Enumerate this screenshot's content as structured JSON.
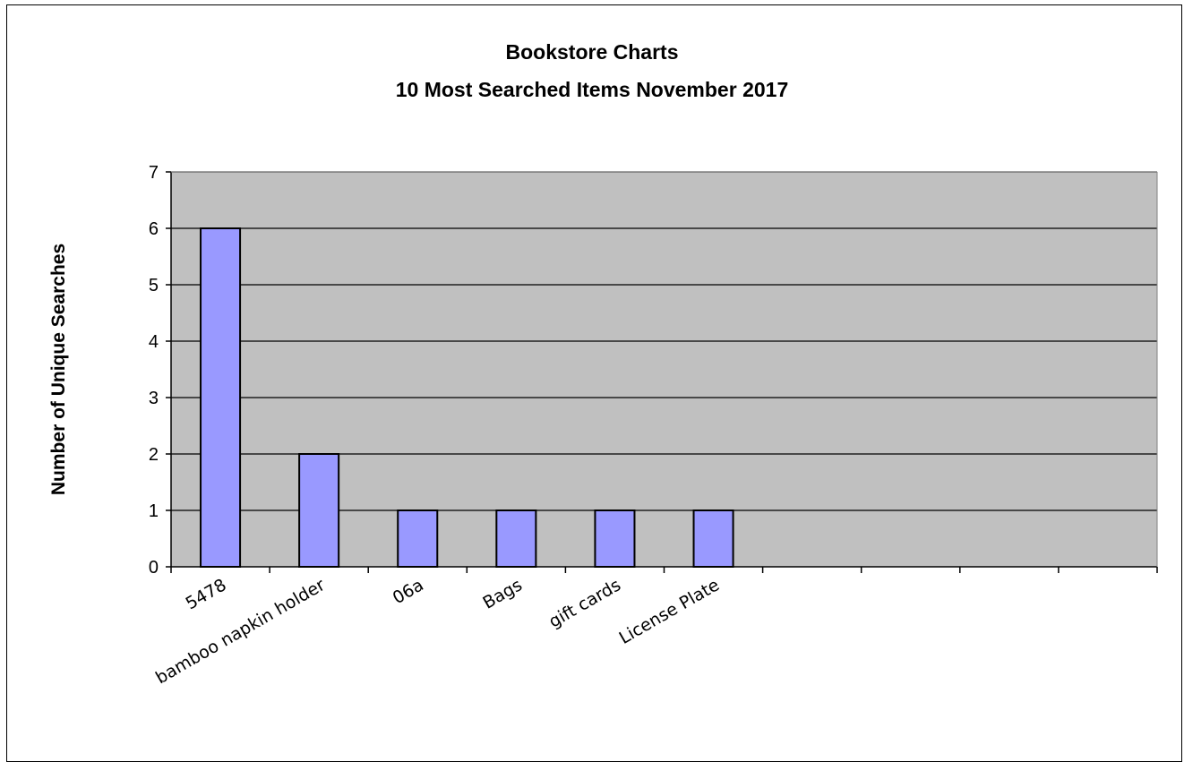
{
  "chart_data": {
    "type": "bar",
    "title": "Bookstore Charts",
    "subtitle": "10 Most Searched Items November 2017",
    "xlabel": "",
    "ylabel": "Number of Unique Searches",
    "categories": [
      "5478",
      "bamboo napkin holder",
      "06a",
      "Bags",
      "gift cards",
      "License Plate",
      "",
      "",
      "",
      ""
    ],
    "values": [
      6,
      2,
      1,
      1,
      1,
      1,
      null,
      null,
      null,
      null
    ],
    "ylim": [
      0,
      7
    ],
    "yticks": [
      0,
      1,
      2,
      3,
      4,
      5,
      6,
      7
    ],
    "grid": "horizontal",
    "legend": "none",
    "colors": {
      "bar_fill": "#9999ff",
      "bar_stroke": "#000000",
      "plot_background": "#c0c0c0",
      "gridline": "#000000"
    }
  }
}
